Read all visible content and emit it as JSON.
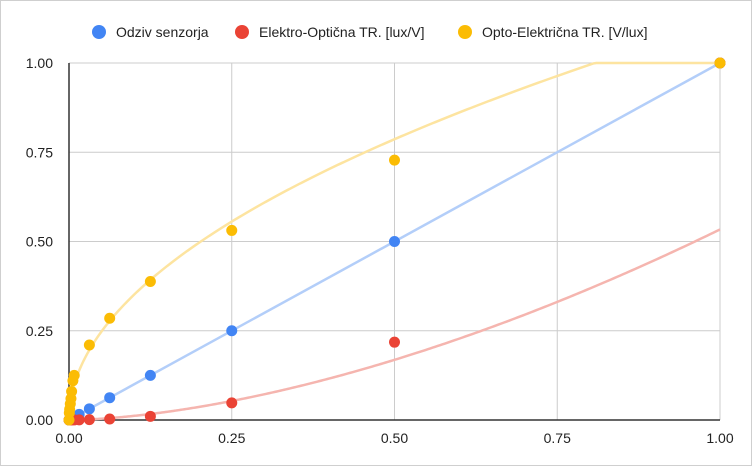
{
  "chart_data": {
    "type": "scatter",
    "title": "",
    "xlabel": "",
    "ylabel": "",
    "xlim": [
      0,
      1
    ],
    "ylim": [
      0,
      1
    ],
    "x_ticks": [
      "0.00",
      "0.25",
      "0.50",
      "0.75",
      "1.00"
    ],
    "y_ticks": [
      "0.00",
      "0.25",
      "0.50",
      "0.75",
      "1.00"
    ],
    "grid": true,
    "legend_position": "top",
    "series": [
      {
        "name": "Odziv senzorja",
        "color": "#4285F4",
        "trend_color": "#B3CEF9",
        "trend": "linear",
        "x": [
          0,
          0.0039,
          0.0078,
          0.0156,
          0.0313,
          0.0625,
          0.125,
          0.25,
          0.5,
          1
        ],
        "y": [
          0,
          0.0039,
          0.0078,
          0.0156,
          0.0313,
          0.0625,
          0.125,
          0.25,
          0.5,
          1
        ]
      },
      {
        "name": "Elektro-Optična TR. [lux/V]",
        "color": "#EA4335",
        "trend_color": "#F5B5AF",
        "trend": "power",
        "x": [
          0,
          0.0039,
          0.0078,
          0.0156,
          0.0313,
          0.0625,
          0.125,
          0.25,
          0.5,
          1
        ],
        "y": [
          0,
          0.0001,
          0.0002,
          0.0005,
          0.0011,
          0.0028,
          0.0103,
          0.048,
          0.218,
          1
        ]
      },
      {
        "name": "Opto-Električna TR. [V/lux]",
        "color": "#FBBC04",
        "trend_color": "#FDE4A0",
        "trend": "power",
        "x": [
          0,
          0.0005,
          0.001,
          0.002,
          0.003,
          0.004,
          0.006,
          0.008,
          0.0313,
          0.0625,
          0.125,
          0.25,
          0.5,
          1
        ],
        "y": [
          0,
          0.02,
          0.03,
          0.045,
          0.06,
          0.08,
          0.11,
          0.125,
          0.21,
          0.285,
          0.388,
          0.531,
          0.728,
          1
        ]
      }
    ]
  }
}
